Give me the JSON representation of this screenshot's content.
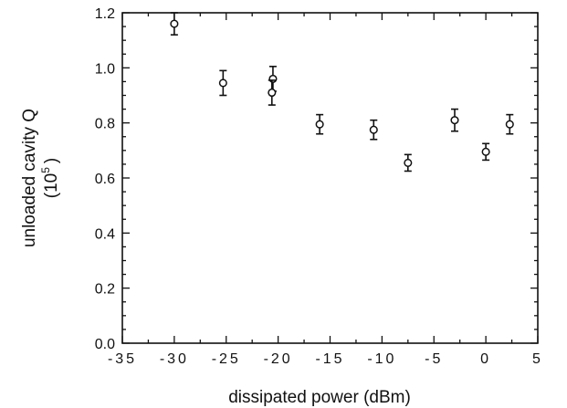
{
  "chart_data": {
    "type": "scatter",
    "xlabel": "dissipated power (dBm)",
    "ylabel_line1": "unloaded cavity Q",
    "ylabel_line2": "(10",
    "ylabel_exponent": "5",
    "ylabel_close": ")",
    "xlim": [
      -35,
      5
    ],
    "ylim": [
      0.0,
      1.2
    ],
    "x_ticks": [
      -35,
      -30,
      -25,
      -20,
      -15,
      -10,
      -5,
      0,
      5
    ],
    "x_tick_labels": [
      "-35",
      "-30",
      "-25",
      "-20",
      "-15",
      "-10",
      "-5",
      "0",
      "5"
    ],
    "y_ticks": [
      0.0,
      0.2,
      0.4,
      0.6,
      0.8,
      1.0,
      1.2
    ],
    "y_tick_labels": [
      "0.0",
      "0.2",
      "0.4",
      "0.6",
      "0.8",
      "1.0",
      "1.2"
    ],
    "grid": false,
    "marker": "open-circle",
    "error_bars": true,
    "points": [
      {
        "x": -30.0,
        "y": 1.16,
        "err": 0.04
      },
      {
        "x": -25.3,
        "y": 0.945,
        "err": 0.045
      },
      {
        "x": -20.5,
        "y": 0.96,
        "err": 0.045
      },
      {
        "x": -20.6,
        "y": 0.91,
        "err": 0.045
      },
      {
        "x": -16.0,
        "y": 0.795,
        "err": 0.035
      },
      {
        "x": -10.8,
        "y": 0.775,
        "err": 0.035
      },
      {
        "x": -7.5,
        "y": 0.655,
        "err": 0.03
      },
      {
        "x": -3.0,
        "y": 0.81,
        "err": 0.04
      },
      {
        "x": 0.0,
        "y": 0.695,
        "err": 0.03
      },
      {
        "x": 2.3,
        "y": 0.795,
        "err": 0.035
      }
    ]
  }
}
